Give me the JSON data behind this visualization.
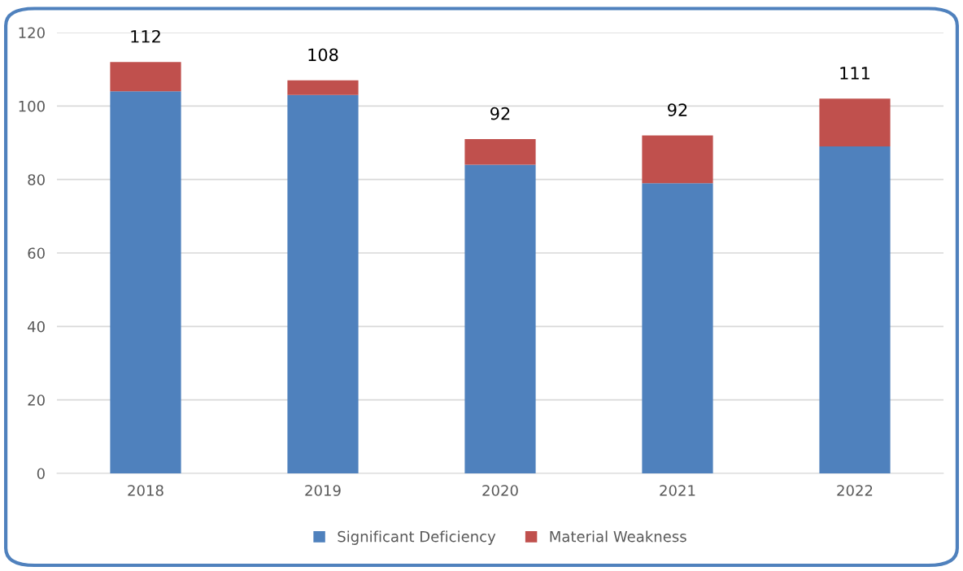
{
  "chart_data": {
    "type": "bar",
    "stacked": true,
    "categories": [
      "2018",
      "2019",
      "2020",
      "2021",
      "2022"
    ],
    "series": [
      {
        "name": "Significant Deficiency",
        "color": "#4f81bd",
        "values": [
          104,
          103,
          84,
          79,
          89
        ]
      },
      {
        "name": "Material Weakness",
        "color": "#c0504d",
        "values": [
          8,
          4,
          7,
          13,
          13
        ]
      }
    ],
    "annotations": [
      {
        "text": "112",
        "x": "2018",
        "y": 112
      },
      {
        "text": "108",
        "x": "2019",
        "y": 107
      },
      {
        "text": "92",
        "x": "2020",
        "y": 91
      },
      {
        "text": "92",
        "x": "2021",
        "y": 92
      },
      {
        "text": "111",
        "x": "2022",
        "y": 102
      }
    ],
    "ylim": [
      0,
      120
    ],
    "yticks": [
      0,
      20,
      40,
      60,
      80,
      100,
      120
    ],
    "grid": "y",
    "legend": "bottom"
  }
}
